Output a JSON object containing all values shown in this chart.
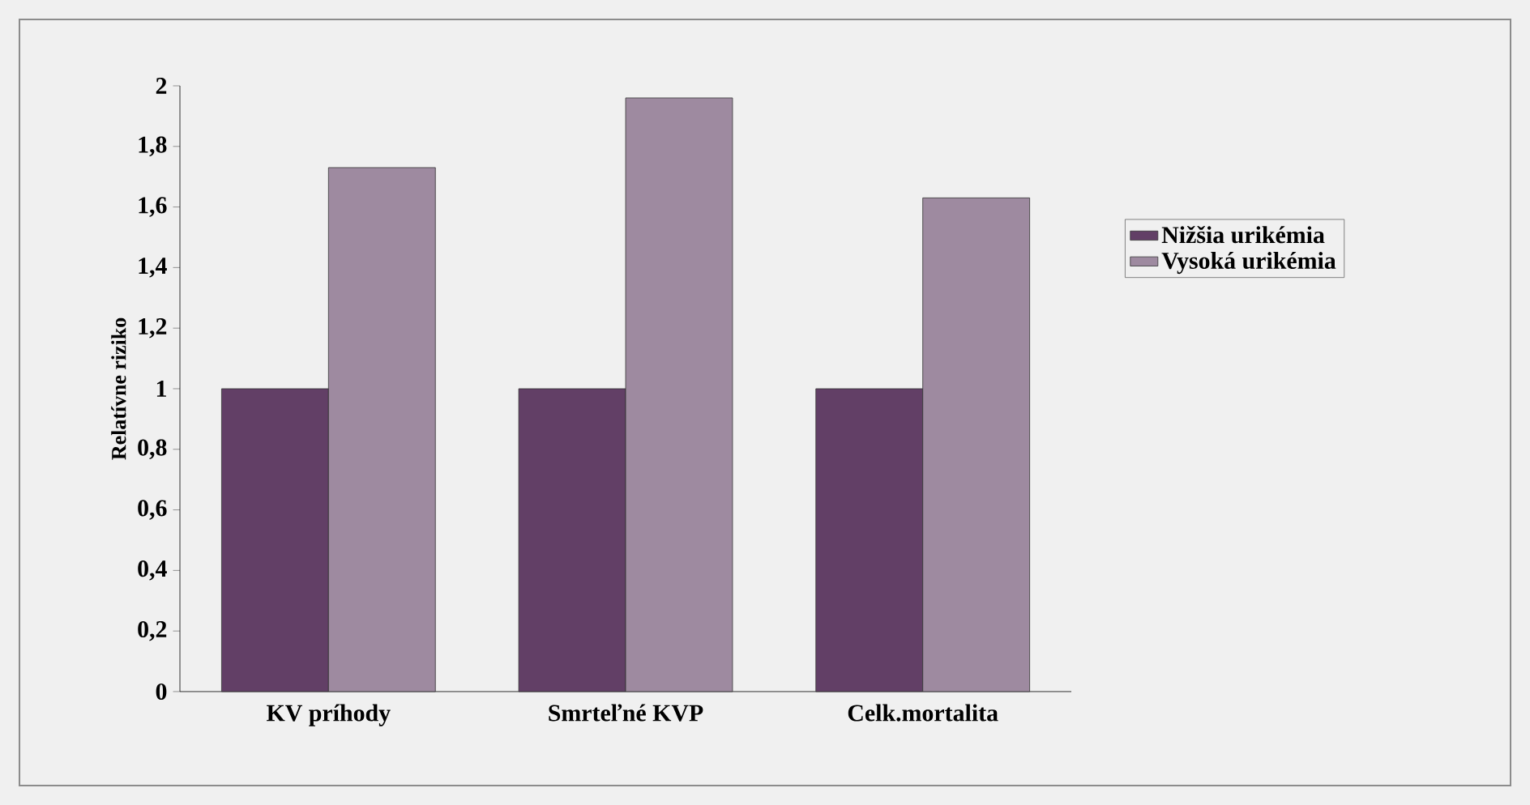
{
  "chart_data": {
    "type": "bar",
    "ylabel": "Relatívne riziko",
    "categories": [
      "KV príhody",
      "Smrteľné KVP",
      "Celk.mortalita"
    ],
    "series": [
      {
        "name": "Nižšia urikémia",
        "color": "#623f66",
        "values": [
          1,
          1,
          1
        ]
      },
      {
        "name": "Vysoká urikémia",
        "color": "#9e8aa0",
        "values": [
          1.73,
          1.96,
          1.63
        ]
      }
    ],
    "ylim": [
      0,
      2
    ],
    "yticks": [
      0,
      {
        "value": 0.2,
        "label": "0,2"
      },
      {
        "value": 0.4,
        "label": "0,4"
      },
      {
        "value": 0.6,
        "label": "0,6"
      },
      {
        "value": 0.8,
        "label": "0,8"
      },
      1,
      {
        "value": 1.2,
        "label": "1,2"
      },
      {
        "value": 1.4,
        "label": "1,4"
      },
      {
        "value": 1.6,
        "label": "1,6"
      },
      {
        "value": 1.8,
        "label": "1,8"
      },
      2
    ],
    "legend": "right",
    "grid": false
  }
}
